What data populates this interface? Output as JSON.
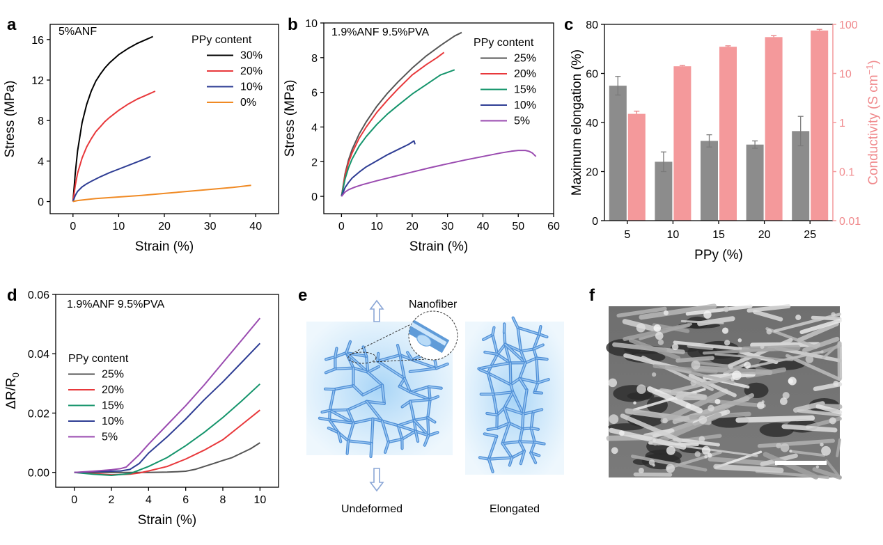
{
  "chart_data": [
    {
      "panel": "a",
      "type": "line",
      "annotation": "5%ANF",
      "xlabel": "Strain (%)",
      "ylabel": "Stress (MPa)",
      "xlim": [
        -5,
        45
      ],
      "ylim": [
        -1.2,
        17.5
      ],
      "xticks": [
        "0",
        "10",
        "20",
        "30",
        "40"
      ],
      "yticks": [
        "0",
        "4",
        "8",
        "12",
        "16"
      ],
      "legend_title": "PPy content",
      "legend_position": "top-right",
      "series": [
        {
          "name": "30%",
          "color": "#000000",
          "x": [
            0,
            0.5,
            1,
            2,
            3,
            4,
            5,
            6,
            7,
            8,
            9,
            10,
            12,
            14,
            16,
            17.5
          ],
          "y": [
            0,
            2.8,
            5,
            7.8,
            9.6,
            10.9,
            11.9,
            12.6,
            13.2,
            13.7,
            14.1,
            14.5,
            15.1,
            15.6,
            16.0,
            16.3
          ]
        },
        {
          "name": "20%",
          "color": "#e8383b",
          "x": [
            0,
            0.5,
            1,
            2,
            3,
            4,
            5,
            6,
            7,
            8,
            10,
            12,
            14,
            16,
            18
          ],
          "y": [
            0,
            1.6,
            2.8,
            4.3,
            5.4,
            6.2,
            6.9,
            7.4,
            7.9,
            8.3,
            9.0,
            9.6,
            10.1,
            10.5,
            10.9
          ]
        },
        {
          "name": "10%",
          "color": "#2e3d94",
          "x": [
            0,
            0.5,
            1,
            2,
            3,
            4,
            6,
            8,
            10,
            12,
            14,
            16,
            17
          ],
          "y": [
            0,
            0.6,
            1.0,
            1.45,
            1.75,
            2.0,
            2.45,
            2.85,
            3.2,
            3.55,
            3.9,
            4.25,
            4.45
          ]
        },
        {
          "name": "0%",
          "color": "#f08a24",
          "x": [
            0,
            1,
            2,
            5,
            10,
            15,
            20,
            25,
            30,
            35,
            39
          ],
          "y": [
            0,
            0.1,
            0.15,
            0.3,
            0.45,
            0.6,
            0.8,
            1.0,
            1.2,
            1.4,
            1.6
          ]
        }
      ]
    },
    {
      "panel": "b",
      "type": "line",
      "annotation": "1.9%ANF 9.5%PVA",
      "xlabel": "Strain (%)",
      "ylabel": "Stress (MPa)",
      "xlim": [
        -5,
        60
      ],
      "ylim": [
        -1,
        10
      ],
      "xticks": [
        "0",
        "10",
        "20",
        "30",
        "40",
        "50",
        "60"
      ],
      "yticks": [
        "0",
        "2",
        "4",
        "6",
        "8",
        "10"
      ],
      "legend_title": "PPy content",
      "legend_position": "top-right",
      "series": [
        {
          "name": "25%",
          "color": "#555555",
          "x": [
            0,
            1,
            2,
            3,
            5,
            7,
            10,
            13,
            16,
            20,
            24,
            28,
            32,
            34
          ],
          "y": [
            0,
            1.3,
            2.1,
            2.7,
            3.6,
            4.3,
            5.2,
            5.95,
            6.6,
            7.4,
            8.1,
            8.7,
            9.25,
            9.45
          ]
        },
        {
          "name": "20%",
          "color": "#e8383b",
          "x": [
            0,
            1,
            2,
            3,
            5,
            7,
            10,
            13,
            16,
            20,
            24,
            27,
            29
          ],
          "y": [
            0,
            1.2,
            1.95,
            2.5,
            3.35,
            4.0,
            4.85,
            5.55,
            6.2,
            7.0,
            7.6,
            8.0,
            8.3
          ]
        },
        {
          "name": "15%",
          "color": "#14946b",
          "x": [
            0,
            1,
            2,
            3,
            5,
            7,
            10,
            13,
            16,
            20,
            24,
            28,
            32
          ],
          "y": [
            0,
            1.0,
            1.65,
            2.15,
            2.9,
            3.45,
            4.15,
            4.75,
            5.25,
            5.9,
            6.45,
            7.0,
            7.3
          ]
        },
        {
          "name": "10%",
          "color": "#2e3d94",
          "x": [
            0,
            1,
            2,
            3,
            5,
            7,
            10,
            13,
            16,
            19,
            20.5,
            20.8
          ],
          "y": [
            0,
            0.5,
            0.8,
            1.05,
            1.4,
            1.7,
            2.05,
            2.4,
            2.7,
            3.0,
            3.2,
            3.0
          ]
        },
        {
          "name": "5%",
          "color": "#9a4bb0",
          "x": [
            0,
            1,
            2,
            4,
            6,
            10,
            15,
            20,
            25,
            30,
            35,
            40,
            45,
            48,
            50,
            52,
            53,
            54,
            55
          ],
          "y": [
            0,
            0.25,
            0.38,
            0.55,
            0.68,
            0.9,
            1.15,
            1.4,
            1.65,
            1.88,
            2.1,
            2.3,
            2.5,
            2.6,
            2.65,
            2.65,
            2.6,
            2.5,
            2.3
          ]
        }
      ]
    },
    {
      "panel": "c",
      "type": "bar",
      "categories": [
        "5",
        "10",
        "15",
        "20",
        "25"
      ],
      "xlabel": "PPy (%)",
      "ylabel": "Maximum elongation (%)",
      "ylabel_right_parts": [
        "Conductivity (S cm",
        "−1",
        ")"
      ],
      "ylim": [
        0,
        80
      ],
      "yticks": [
        "0",
        "20",
        "40",
        "60",
        "80"
      ],
      "ylim_right_log": [
        0.01,
        100
      ],
      "yticks_right": [
        "0.01",
        "0.1",
        "1",
        "10",
        "100"
      ],
      "series": [
        {
          "name": "Maximum elongation",
          "color": "#8c8c8c",
          "values": [
            55,
            24,
            32.5,
            31,
            36.5
          ],
          "errors": [
            3.8,
            4,
            2.5,
            1.5,
            6
          ]
        },
        {
          "name": "Conductivity",
          "color": "#f4999b",
          "axis": "right-log",
          "values": [
            1.5,
            14,
            35,
            55,
            75
          ],
          "errors_up": [
            0.2,
            0.5,
            1.5,
            4,
            4
          ]
        }
      ]
    },
    {
      "panel": "d",
      "type": "line",
      "annotation": "1.9%ANF 9.5%PVA",
      "xlabel": "Strain (%)",
      "ylabel_parts": [
        "ΔR/R",
        "0"
      ],
      "xlim": [
        -1,
        11
      ],
      "ylim": [
        -0.005,
        0.06
      ],
      "xticks": [
        "0",
        "2",
        "4",
        "6",
        "8",
        "10"
      ],
      "yticks": [
        "0.00",
        "0.02",
        "0.04",
        "0.06"
      ],
      "legend_title": "PPy content",
      "legend_position": "center-left",
      "series": [
        {
          "name": "25%",
          "color": "#555555",
          "x": [
            0,
            1,
            2,
            3,
            4,
            5,
            5.5,
            6,
            6.5,
            7,
            7.5,
            8,
            8.5,
            9,
            9.5,
            10
          ],
          "y": [
            0,
            0,
            0,
            0,
            0,
            0.0001,
            0.0002,
            0.0004,
            0.001,
            0.002,
            0.003,
            0.004,
            0.005,
            0.0065,
            0.008,
            0.01
          ]
        },
        {
          "name": "20%",
          "color": "#e8383b",
          "x": [
            0,
            1,
            2,
            3,
            3.5,
            4,
            5,
            6,
            7,
            8,
            9,
            10
          ],
          "y": [
            0,
            -0.0004,
            -0.0008,
            -0.0006,
            -0.0002,
            0.0005,
            0.002,
            0.0045,
            0.0075,
            0.011,
            0.016,
            0.021
          ]
        },
        {
          "name": "15%",
          "color": "#14946b",
          "x": [
            0,
            1,
            2,
            3,
            3.5,
            4,
            5,
            6,
            7,
            8,
            9,
            10
          ],
          "y": [
            0,
            -0.0006,
            -0.001,
            -0.0004,
            0.0008,
            0.002,
            0.005,
            0.009,
            0.0135,
            0.0185,
            0.024,
            0.0298
          ]
        },
        {
          "name": "10%",
          "color": "#2e3d94",
          "x": [
            0,
            1,
            2,
            2.5,
            3,
            3.5,
            4,
            5,
            6,
            7,
            8,
            9,
            10
          ],
          "y": [
            0,
            0.0002,
            0.0004,
            0.0005,
            0.001,
            0.003,
            0.0065,
            0.012,
            0.018,
            0.0245,
            0.0305,
            0.037,
            0.0435
          ]
        },
        {
          "name": "5%",
          "color": "#9a4bb0",
          "x": [
            0,
            1,
            2,
            2.5,
            2.8,
            3,
            3.5,
            4,
            5,
            6,
            7,
            8,
            9,
            10
          ],
          "y": [
            0,
            0.0004,
            0.0009,
            0.0013,
            0.0018,
            0.003,
            0.006,
            0.0095,
            0.016,
            0.0225,
            0.0295,
            0.037,
            0.0445,
            0.052
          ]
        }
      ]
    }
  ],
  "labels": {
    "a": "a",
    "b": "b",
    "c": "c",
    "d": "d",
    "e": "e",
    "f": "f",
    "nanofiber": "Nanofiber",
    "undeformed": "Undeformed",
    "elongated": "Elongated"
  }
}
